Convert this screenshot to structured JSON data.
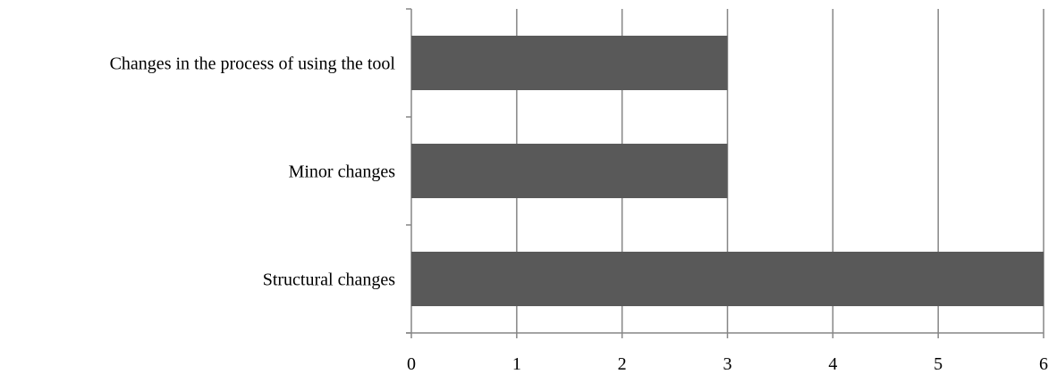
{
  "chart_data": {
    "type": "bar",
    "orientation": "horizontal",
    "title": "",
    "xlabel": "",
    "ylabel": "",
    "categories": [
      "Structural changes",
      "Minor changes",
      "Changes in the process of using the tool"
    ],
    "values": [
      6,
      3,
      3
    ],
    "xlim": [
      0,
      6
    ],
    "x_ticks": [
      0,
      1,
      2,
      3,
      4,
      5,
      6
    ],
    "grid": "vertical",
    "legend": "none",
    "colors": {
      "bar": "#595959",
      "gridline": "#868686",
      "axis": "#868686",
      "text": "#000000"
    }
  }
}
